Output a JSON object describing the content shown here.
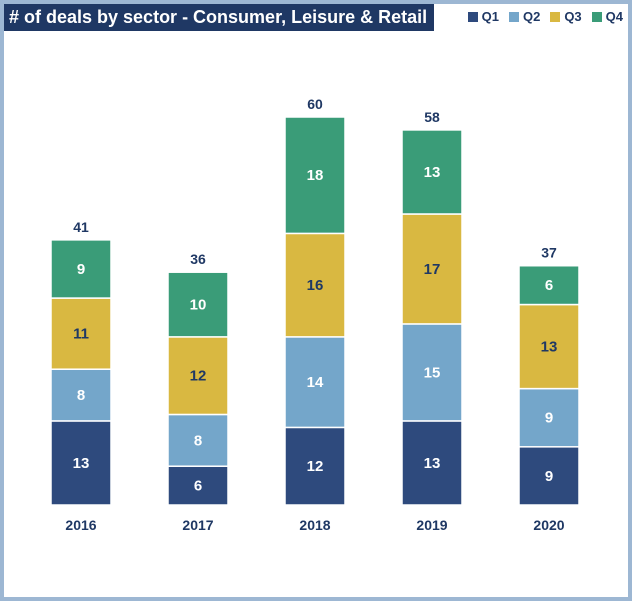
{
  "chart_data": {
    "type": "bar",
    "stacked": true,
    "title": "# of deals by sector - Consumer, Leisure & Retail",
    "categories": [
      "2016",
      "2017",
      "2018",
      "2019",
      "2020"
    ],
    "series": [
      {
        "name": "Q1",
        "color": "#2e4a7d",
        "label_color": "#ffffff",
        "values": [
          13,
          6,
          12,
          13,
          9
        ]
      },
      {
        "name": "Q2",
        "color": "#74a6ca",
        "label_color": "#ffffff",
        "values": [
          8,
          8,
          14,
          15,
          9
        ]
      },
      {
        "name": "Q3",
        "color": "#d9b841",
        "label_color": "#1f3864",
        "values": [
          11,
          12,
          16,
          17,
          13
        ]
      },
      {
        "name": "Q4",
        "color": "#3a9c78",
        "label_color": "#ffffff",
        "values": [
          9,
          10,
          18,
          13,
          6
        ]
      }
    ],
    "totals": [
      41,
      36,
      60,
      58,
      37
    ],
    "legend_position": "top-right",
    "grid": false
  }
}
